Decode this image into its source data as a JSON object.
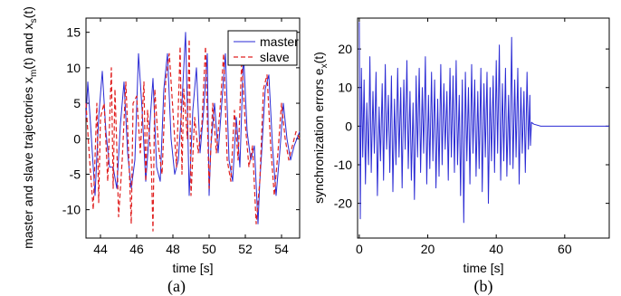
{
  "chart_data": [
    {
      "type": "line",
      "caption": "(a)",
      "xlabel": "time [s]",
      "ylabel": "master and slave trajectories x_m(t) and x_s(t)",
      "ylabel_parts": {
        "prefix": "master and slave trajectories x",
        "sub1": "m",
        "mid": "(t) and x",
        "sub2": "s",
        "suffix": "(t)"
      },
      "xlim": [
        43.2,
        55
      ],
      "ylim": [
        -14,
        17
      ],
      "xticks": [
        44,
        46,
        48,
        50,
        52,
        54
      ],
      "yticks": [
        -10,
        -5,
        0,
        5,
        10,
        15
      ],
      "grid": false,
      "legend": {
        "placement": "top-right",
        "entries": [
          "master",
          "slave"
        ]
      },
      "series": [
        {
          "name": "master",
          "color": "#2a2ad4",
          "style": "solid",
          "x": [
            43.2,
            43.3,
            43.5,
            43.7,
            43.9,
            44.1,
            44.3,
            44.5,
            44.7,
            44.9,
            45.1,
            45.3,
            45.5,
            45.7,
            45.9,
            46.1,
            46.3,
            46.5,
            46.7,
            46.9,
            47.1,
            47.3,
            47.5,
            47.7,
            47.9,
            48.1,
            48.3,
            48.5,
            48.7,
            48.8,
            48.9,
            49.1,
            49.3,
            49.5,
            49.7,
            49.9,
            50.0,
            50.1,
            50.3,
            50.5,
            50.7,
            50.9,
            51.1,
            51.3,
            51.5,
            51.7,
            51.9,
            52.1,
            52.3,
            52.5,
            52.7,
            52.8,
            52.9,
            53.1,
            53.3,
            53.5,
            53.7,
            53.9,
            54.1,
            54.3,
            54.5,
            54.7,
            55.0
          ],
          "y": [
            3,
            8,
            0,
            -8,
            3,
            9.5,
            1,
            -4,
            -4,
            -7,
            2,
            8,
            -2,
            -7,
            -3,
            12,
            4,
            -6,
            1,
            8.5,
            -4,
            -6,
            7,
            12,
            0,
            -5,
            -3,
            5,
            15,
            4,
            -8,
            4,
            10,
            -2,
            4,
            12,
            -8,
            -1,
            5,
            -2,
            5,
            12,
            -3,
            -6,
            3,
            -4,
            12,
            1,
            -3,
            -1,
            -12,
            -6,
            -2,
            7,
            9,
            -1,
            -8,
            -2,
            5,
            0,
            -3,
            -1,
            1
          ]
        },
        {
          "name": "slave",
          "color": "#e02020",
          "style": "dashed",
          "x": [
            43.2,
            43.4,
            43.6,
            43.8,
            43.9,
            44.0,
            44.2,
            44.4,
            44.6,
            44.7,
            44.8,
            44.9,
            45.0,
            45.2,
            45.4,
            45.6,
            45.7,
            45.8,
            46.0,
            46.2,
            46.4,
            46.5,
            46.6,
            46.8,
            46.9,
            47.0,
            47.2,
            47.4,
            47.6,
            47.8,
            48.0,
            48.2,
            48.4,
            48.5,
            48.6,
            48.8,
            48.9,
            49.0,
            49.2,
            49.4,
            49.6,
            49.8,
            50.0,
            50.2,
            50.4,
            50.6,
            50.8,
            51.0,
            51.2,
            51.4,
            51.6,
            51.8,
            52.0,
            52.2,
            52.4,
            52.6,
            52.8,
            53.0,
            53.2,
            53.4,
            53.6,
            53.8,
            54.0,
            54.2,
            54.4,
            54.6,
            54.8,
            55.0
          ],
          "y": [
            5,
            -3,
            -10,
            5,
            -9,
            3,
            5,
            -6,
            10,
            -7,
            7,
            -1,
            -11,
            -3,
            8,
            -5,
            -12,
            5,
            6,
            -2,
            8,
            -6,
            4,
            -3,
            -13,
            7,
            -1,
            -5,
            8,
            12,
            4,
            -4,
            13,
            -5,
            7,
            0,
            14,
            -8,
            3,
            -2,
            2,
            13,
            -7,
            5,
            -2,
            4,
            12,
            -3,
            -6,
            4,
            -3,
            11,
            2,
            -4,
            -1,
            -12,
            -6,
            7,
            9,
            -1,
            -8,
            -2,
            5,
            0,
            -3,
            -1,
            1,
            0
          ]
        }
      ]
    },
    {
      "type": "line",
      "caption": "(b)",
      "xlabel": "time [s]",
      "ylabel": "synchronization errors e_x(t)",
      "ylabel_parts": {
        "prefix": "synchronization errors e",
        "sub1": "x",
        "suffix": "(t)"
      },
      "xlim": [
        -0.5,
        73
      ],
      "ylim": [
        -29,
        28
      ],
      "xticks": [
        0,
        20,
        40,
        60
      ],
      "yticks": [
        -20,
        -10,
        0,
        10,
        20
      ],
      "grid": false,
      "series": [
        {
          "name": "",
          "color": "#2a2ad4",
          "style": "solid",
          "x": [
            0,
            0.3,
            0.6,
            1,
            1.4,
            1.8,
            2.2,
            2.7,
            3.1,
            3.5,
            4,
            4.4,
            4.9,
            5.3,
            5.8,
            6.2,
            6.7,
            7.1,
            7.6,
            8,
            8.5,
            8.9,
            9.4,
            9.8,
            10.3,
            10.7,
            11.2,
            11.6,
            12.1,
            12.5,
            13,
            13.4,
            13.9,
            14.3,
            14.8,
            15.2,
            15.7,
            16.1,
            16.6,
            17,
            17.5,
            17.9,
            18.4,
            18.8,
            19.3,
            19.7,
            20.2,
            20.6,
            21.1,
            21.5,
            22,
            22.4,
            22.9,
            23.3,
            23.8,
            24.2,
            24.7,
            25.1,
            25.6,
            26,
            26.5,
            26.9,
            27.4,
            27.8,
            28.3,
            28.7,
            29.2,
            29.6,
            30.1,
            30.5,
            31,
            31.4,
            31.9,
            32.3,
            32.8,
            33.2,
            33.7,
            34.1,
            34.6,
            35,
            35.5,
            35.9,
            36.4,
            36.8,
            37.3,
            37.7,
            38.2,
            38.6,
            39.1,
            39.5,
            40,
            40.4,
            40.9,
            41.3,
            41.8,
            42.2,
            42.7,
            43.1,
            43.6,
            44,
            44.5,
            44.9,
            45.4,
            45.8,
            46.3,
            46.7,
            47.2,
            47.6,
            48.1,
            48.5,
            49,
            49.4,
            49.8,
            50,
            50.3,
            51,
            53,
            56,
            60,
            65,
            70,
            73
          ],
          "y": [
            27,
            -24,
            15,
            -8,
            12,
            -15,
            6,
            -10,
            18,
            -12,
            9,
            -7,
            14,
            -18,
            5,
            -9,
            11,
            -14,
            16,
            -6,
            8,
            -12,
            13,
            -17,
            7,
            -10,
            15,
            -8,
            10,
            -16,
            12,
            -6,
            17,
            -11,
            9,
            -14,
            6,
            -19,
            13,
            -8,
            15,
            -12,
            10,
            -7,
            18,
            -15,
            8,
            -11,
            14,
            -9,
            12,
            -16,
            7,
            -13,
            16,
            -10,
            11,
            -6,
            9,
            -14,
            15,
            -8,
            13,
            -12,
            17,
            -10,
            8,
            -18,
            12,
            -25,
            14,
            -9,
            10,
            -15,
            16,
            -7,
            12,
            -13,
            9,
            -11,
            15,
            -17,
            11,
            -8,
            14,
            -20,
            10,
            -9,
            13,
            -12,
            17,
            -7,
            21,
            -14,
            11,
            -9,
            15,
            -13,
            8,
            -10,
            23,
            -11,
            12,
            -8,
            15,
            -15,
            10,
            -7,
            9,
            -12,
            14,
            -6,
            8,
            -5,
            1,
            0.5,
            0,
            0,
            0,
            0,
            0,
            0
          ]
        }
      ]
    }
  ]
}
